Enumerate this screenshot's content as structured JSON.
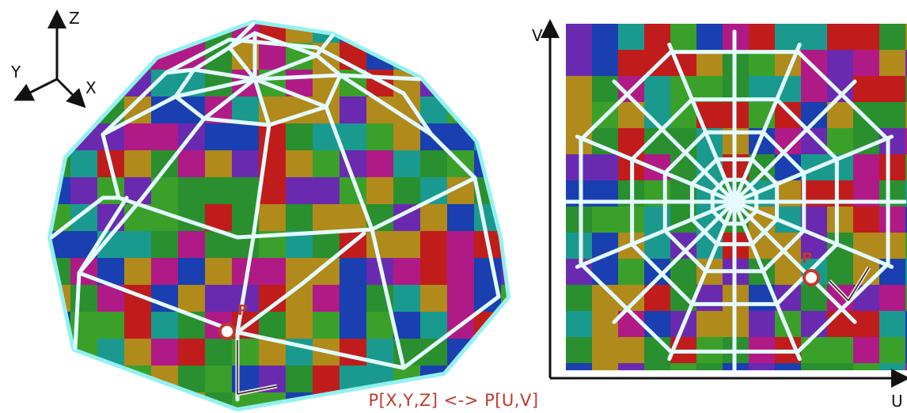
{
  "axes3d": {
    "z": "Z",
    "y": "Y",
    "x": "X"
  },
  "uv_axes": {
    "v": "V",
    "u": "U"
  },
  "point_label": "P",
  "caption": "P[X,Y,Z] <-> P[U,V]",
  "colors": {
    "wire": "#e4fbff",
    "glow": "#88f0f0",
    "marker": "#c0392b",
    "caption": "#c0392b",
    "palette": [
      "#2a8f2e",
      "#3aa02a",
      "#1a9a8e",
      "#b08a1a",
      "#c01c1c",
      "#1a3fb0",
      "#6a2ab0",
      "#b01a86"
    ]
  },
  "icons": {
    "axis_gizmo": "axes-3d-icon",
    "point_marker": "circle-marker-icon",
    "tangent_frame": "tangent-frame-icon"
  }
}
